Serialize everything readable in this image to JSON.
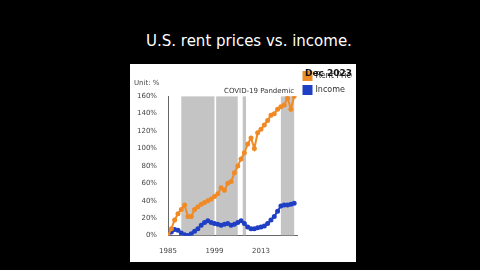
{
  "chart_data": {
    "type": "line",
    "title": "U.S. rent prices vs. income.",
    "subtitle": "Dec 2023",
    "y_label": "Unit: %",
    "x": [
      1985,
      1986,
      1987,
      1988,
      1989,
      1990,
      1991,
      1992,
      1993,
      1994,
      1995,
      1996,
      1997,
      1998,
      1999,
      2000,
      2001,
      2002,
      2003,
      2004,
      2005,
      2006,
      2007,
      2008,
      2009,
      2010,
      2011,
      2012,
      2013,
      2014,
      2015,
      2016,
      2017,
      2018,
      2019,
      2020,
      2021,
      2022,
      2023
    ],
    "series": [
      {
        "name": "Rent Price",
        "color": "#f08a24",
        "marker": "circle",
        "line_style": "solid",
        "values": [
          0,
          8,
          18,
          25,
          30,
          35,
          22,
          22,
          30,
          33,
          36,
          38,
          40,
          42,
          45,
          48,
          55,
          52,
          60,
          62,
          72,
          80,
          88,
          95,
          105,
          112,
          100,
          118,
          122,
          127,
          132,
          138,
          140,
          145,
          148,
          150,
          158,
          145,
          160
        ]
      },
      {
        "name": "Income",
        "color": "#1f3fc4",
        "marker": "circle",
        "line_style": "solid",
        "values": [
          0,
          4,
          7,
          6,
          3,
          1,
          0,
          2,
          5,
          8,
          12,
          15,
          17,
          15,
          14,
          13,
          12,
          13,
          14,
          12,
          13,
          15,
          17,
          14,
          10,
          8,
          8,
          9,
          10,
          11,
          14,
          18,
          22,
          28,
          34,
          35,
          35,
          36,
          37
        ]
      }
    ],
    "xlim": [
      1985,
      2024
    ],
    "xticks": [
      1985,
      1999,
      2013
    ],
    "ylim": [
      0,
      160
    ],
    "yticks": [
      {
        "value": 0,
        "label": "0%"
      },
      {
        "value": 20,
        "label": "20%"
      },
      {
        "value": 40,
        "label": "40%"
      },
      {
        "value": 60,
        "label": "60%"
      },
      {
        "value": 80,
        "label": "80%"
      },
      {
        "value": 100,
        "label": "100%"
      },
      {
        "value": 120,
        "label": "120%"
      },
      {
        "value": 140,
        "label": "140%"
      },
      {
        "value": 160,
        "label": "160%"
      }
    ],
    "shaded_regions": [
      {
        "start": 1989,
        "end": 1999
      },
      {
        "start": 1999.5,
        "end": 2006
      },
      {
        "start": 2007.5,
        "end": 2008.5
      },
      {
        "start": 2019,
        "end": 2023,
        "label": "COVID-19 Pandemic"
      }
    ],
    "grid": false,
    "legend": "right"
  }
}
